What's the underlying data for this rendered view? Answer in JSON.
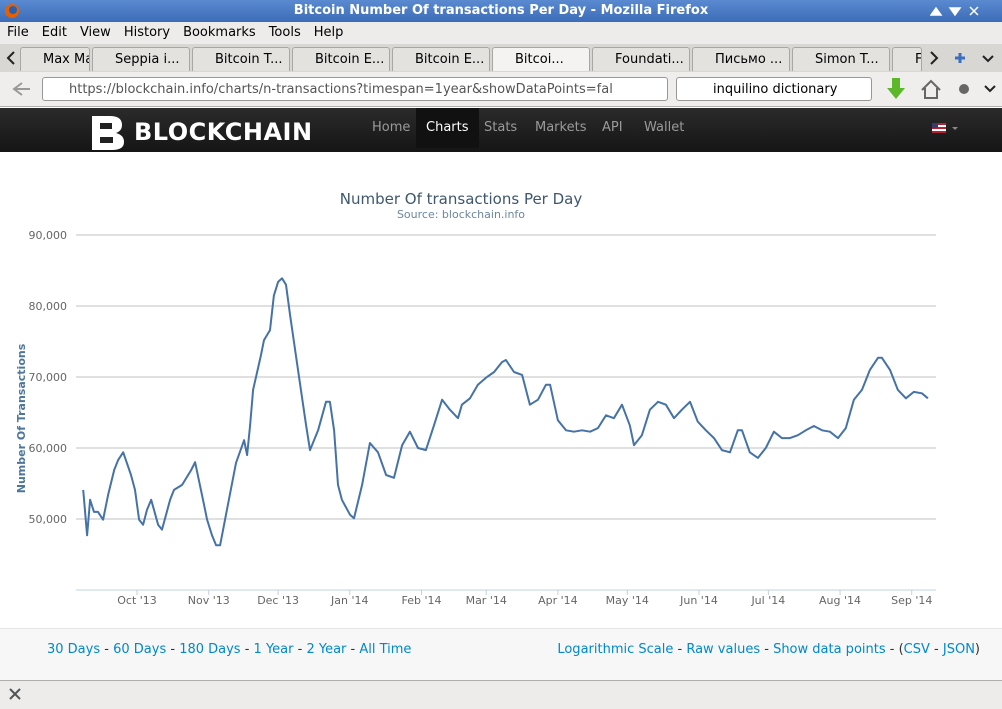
{
  "window": {
    "title": "Bitcoin Number Of transactions Per Day - Mozilla Firefox"
  },
  "menu": [
    "File",
    "Edit",
    "View",
    "History",
    "Bookmarks",
    "Tools",
    "Help"
  ],
  "tabs": [
    "Max Man...",
    "Seppia i...",
    "Bitcoin T...",
    "Bitcoin E...",
    "Bitcoin E...",
    "Bitcoi...",
    "Foundati...",
    "Письмо ...",
    "Simon T...",
    "F"
  ],
  "address": "https://blockchain.info/charts/n-transactions?timespan=1year&showDataPoints=fal",
  "search": "inquilino dictionary",
  "site": {
    "logo": "BLOCKCHAIN",
    "nav": [
      "Home",
      "Charts",
      "Stats",
      "Markets",
      "API",
      "Wallet"
    ]
  },
  "chart_data": {
    "type": "line",
    "title": "Number Of transactions Per Day",
    "subtitle": "Source: blockchain.info",
    "y_label": "Number Of Transactions",
    "x": [
      6.7,
      8.4,
      9.7,
      11.4,
      13.1,
      15.3,
      17.5,
      20.1,
      21.8,
      24.0,
      27.4,
      29.1,
      30.9,
      32.6,
      34.3,
      36.1,
      39.1,
      40.8,
      44.3,
      46.0,
      49.5,
      53.4,
      55.1,
      58.5,
      60.3,
      62.4,
      64.2,
      65.9,
      69.3,
      72.8,
      76.3,
      77.6,
      78.9,
      80.2,
      83.6,
      84.9,
      87.5,
      89.2,
      91.0,
      92.7,
      94.4,
      96.2,
      99.6,
      103.1,
      104.8,
      108.3,
      111.7,
      113.4,
      115.2,
      116.9,
      118.6,
      122.1,
      123.8,
      127.3,
      130.7,
      134.2,
      137.7,
      141.1,
      144.6,
      148.0,
      151.5,
      154.9,
      158.4,
      161.9,
      165.3,
      168.8,
      170.5,
      174.0,
      177.4,
      180.9,
      184.4,
      187.8,
      189.5,
      193.0,
      196.5,
      199.9,
      203.4,
      206.8,
      208.6,
      212.0,
      215.5,
      218.9,
      222.4,
      225.9,
      229.3,
      232.8,
      236.2,
      239.7,
      243.1,
      244.9,
      248.3,
      251.8,
      255.3,
      258.7,
      262.2,
      265.6,
      269.1,
      272.5,
      276.0,
      279.5,
      282.9,
      286.4,
      289.8,
      291.6,
      295.0,
      298.5,
      301.9,
      305.4,
      308.9,
      312.3,
      315.8,
      319.2,
      322.7,
      326.2,
      329.6,
      333.1,
      336.5,
      340.0,
      343.5,
      346.9,
      350.4,
      352.1,
      355.6,
      359.0,
      362.5,
      365.9,
      369.4,
      372.0
    ],
    "series": [
      {
        "name": "Number Of Transactions",
        "color": "#4572a7",
        "values": [
          54100,
          47700,
          52700,
          51000,
          51000,
          49900,
          53400,
          56900,
          58300,
          59400,
          56200,
          54100,
          49900,
          49200,
          51300,
          52700,
          49200,
          48500,
          52700,
          54100,
          54800,
          56900,
          58000,
          52700,
          49900,
          47700,
          46300,
          46300,
          52000,
          57900,
          61100,
          59000,
          63200,
          68200,
          73100,
          75200,
          76600,
          81500,
          83400,
          83900,
          83000,
          78700,
          71000,
          63200,
          59700,
          62500,
          66500,
          66500,
          62500,
          54800,
          52700,
          50600,
          50100,
          54800,
          60700,
          59400,
          56200,
          55800,
          60400,
          62300,
          60000,
          59700,
          63200,
          66800,
          65400,
          64200,
          66100,
          67000,
          68900,
          69900,
          70700,
          72100,
          72400,
          70700,
          70300,
          66100,
          66800,
          68900,
          68900,
          63900,
          62500,
          62300,
          62500,
          62300,
          62800,
          64600,
          64200,
          66100,
          63200,
          60400,
          61800,
          65400,
          66500,
          66100,
          64200,
          65400,
          66500,
          63700,
          62500,
          61400,
          59700,
          59400,
          62500,
          62500,
          59400,
          58600,
          60000,
          62300,
          61400,
          61400,
          61800,
          62500,
          63100,
          62500,
          62300,
          61400,
          62800,
          66800,
          68200,
          71000,
          72700,
          72700,
          71000,
          68200,
          67000,
          67900,
          67700,
          67000
        ]
      }
    ],
    "xlim": [
      3.6,
      375.5
    ],
    "xticks": [
      {
        "value": 30,
        "label": "Oct '13"
      },
      {
        "value": 61,
        "label": "Nov '13"
      },
      {
        "value": 91,
        "label": "Dec '13"
      },
      {
        "value": 122,
        "label": "Jan '14"
      },
      {
        "value": 153,
        "label": "Feb '14"
      },
      {
        "value": 181,
        "label": "Mar '14"
      },
      {
        "value": 212,
        "label": "Apr '14"
      },
      {
        "value": 242,
        "label": "May '14"
      },
      {
        "value": 273,
        "label": "Jun '14"
      },
      {
        "value": 303,
        "label": "Jul '14"
      },
      {
        "value": 334,
        "label": "Aug '14"
      },
      {
        "value": 365,
        "label": "Sep '14"
      }
    ],
    "ylim": [
      40000,
      90000
    ],
    "yticks": [
      {
        "value": 50000,
        "label": "50,000"
      },
      {
        "value": 60000,
        "label": "60,000"
      },
      {
        "value": 70000,
        "label": "70,000"
      },
      {
        "value": 80000,
        "label": "80,000"
      },
      {
        "value": 90000,
        "label": "90,000"
      }
    ],
    "grid": true
  },
  "footer": {
    "timespans": [
      "30 Days",
      "60 Days",
      "180 Days",
      "1 Year",
      "2 Year",
      "All Time"
    ],
    "options": [
      "Logarithmic Scale",
      "Raw values",
      "Show data points"
    ],
    "exports": [
      "CSV",
      "JSON"
    ],
    "separator": " - ",
    "open": "(",
    "close": ")"
  }
}
